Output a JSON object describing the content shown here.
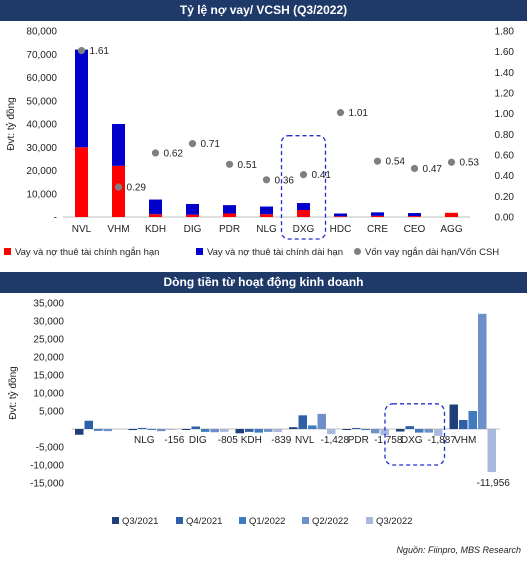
{
  "source_note": "Nguồn: Fiinpro, MBS Research",
  "chart_data": [
    {
      "type": "bar",
      "title": "Tỷ lệ nợ vay/ VCSH (Q3/2022)",
      "ylabel": "Đvt: tỷ đồng",
      "categories": [
        "NVL",
        "VHM",
        "KDH",
        "DIG",
        "PDR",
        "NLG",
        "DXG",
        "HDC",
        "CRE",
        "CEO",
        "AGG"
      ],
      "series": [
        {
          "name": "Vay và nợ thuê tài chính ngắn hạn",
          "values": [
            30000,
            22000,
            1200,
            1000,
            1500,
            1200,
            3000,
            300,
            500,
            400,
            1800
          ],
          "color": "#ff0000",
          "kind": "stacked-bar"
        },
        {
          "name": "Vay và nợ thuê tài chính dài hạn",
          "values": [
            42000,
            18000,
            6300,
            4600,
            3600,
            3300,
            3000,
            1200,
            1500,
            1300,
            0
          ],
          "color": "#0000cc",
          "kind": "stacked-bar"
        },
        {
          "name": "Vốn vay ngắn dài hạn/Vốn CSH",
          "values": [
            1.61,
            0.29,
            0.62,
            0.71,
            0.51,
            0.36,
            0.41,
            1.01,
            0.54,
            0.47,
            0.53
          ],
          "color": "#7f7f7f",
          "kind": "dot",
          "axis": "right"
        }
      ],
      "data_labels": [
        "1.61",
        "0.29",
        "0.62",
        "0.71",
        "0.51",
        "0.36",
        "0.41",
        "1.01",
        "0.54",
        "0.47",
        "0.53"
      ],
      "ylim_left": [
        0,
        80000
      ],
      "ylim_right": [
        0,
        1.8
      ],
      "yticks_left": [
        "-",
        "10,000",
        "20,000",
        "30,000",
        "40,000",
        "50,000",
        "60,000",
        "70,000",
        "80,000"
      ],
      "yticks_right": [
        "0.00",
        "0.20",
        "0.40",
        "0.60",
        "0.80",
        "1.00",
        "1.20",
        "1.40",
        "1.60",
        "1.80"
      ],
      "highlight": "DXG",
      "legend_position": "bottom"
    },
    {
      "type": "bar",
      "title": "Dòng tiền từ hoạt động kinh doanh",
      "ylabel": "Đvt: tỷ đồng",
      "categories": [
        "NVL",
        "NLG",
        "DIG",
        "KDH",
        "NVL",
        "PDR",
        "DXG",
        "VHM"
      ],
      "category_labels": [
        "",
        "NLG",
        "DIG",
        "KDH",
        "NVL",
        "PDR",
        "DXG",
        "VHM"
      ],
      "series": [
        {
          "name": "Q3/2021",
          "values": [
            -1600,
            -300,
            -200,
            -1200,
            500,
            -200,
            -700,
            6800
          ],
          "color": "#1f3f7a"
        },
        {
          "name": "Q4/2021",
          "values": [
            2300,
            300,
            700,
            -800,
            3800,
            300,
            800,
            2500
          ],
          "color": "#2e5fa8"
        },
        {
          "name": "Q1/2022",
          "values": [
            -500,
            -200,
            -800,
            -1000,
            1000,
            -300,
            -1000,
            5000
          ],
          "color": "#3f7bbf"
        },
        {
          "name": "Q2/2022",
          "values": [
            -600,
            -600,
            -900,
            -800,
            4200,
            -1200,
            -1000,
            32000
          ],
          "color": "#6f8fcb"
        },
        {
          "name": "Q3/2022",
          "values": [
            null,
            -156,
            -805,
            -839,
            -1428,
            -1758,
            -1887,
            -11956
          ],
          "color": "#a9b9dc"
        }
      ],
      "data_labels": [
        "",
        "-156",
        "-805",
        "-839",
        "-1,428",
        "-1,758",
        "-1,887",
        "-11,956"
      ],
      "ylim": [
        -15000,
        35000
      ],
      "yticks": [
        "-15,000",
        "-10,000",
        "-5,000",
        "5,000",
        "10,000",
        "15,000",
        "20,000",
        "25,000",
        "30,000",
        "35,000"
      ],
      "highlight": "DXG",
      "legend_position": "bottom"
    }
  ]
}
